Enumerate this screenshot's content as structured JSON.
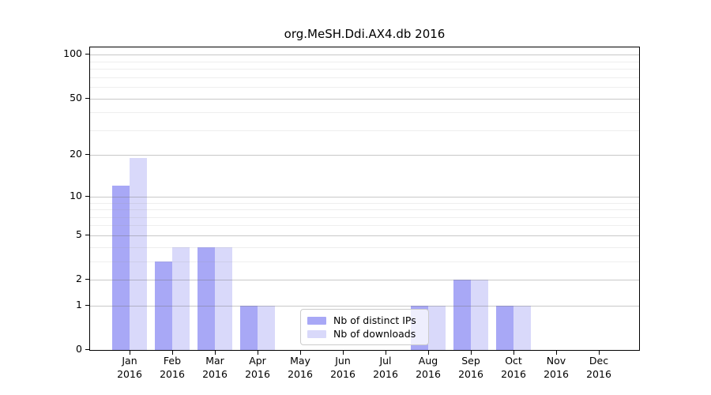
{
  "title": "org.MeSH.Ddi.AX4.db 2016",
  "chart_data": {
    "type": "bar",
    "title": "org.MeSH.Ddi.AX4.db 2016",
    "categories": [
      "Jan 2016",
      "Feb 2016",
      "Mar 2016",
      "Apr 2016",
      "May 2016",
      "Jun 2016",
      "Jul 2016",
      "Aug 2016",
      "Sep 2016",
      "Oct 2016",
      "Nov 2016",
      "Dec 2016"
    ],
    "series": [
      {
        "name": "Nb of distinct IPs",
        "color": "#a8a8f6",
        "values": [
          12,
          3,
          4,
          1,
          0,
          0,
          0,
          1,
          2,
          1,
          0,
          0
        ]
      },
      {
        "name": "Nb of downloads",
        "color": "#d9d9fa",
        "values": [
          19,
          4,
          4,
          1,
          0,
          0,
          0,
          1,
          2,
          1,
          0,
          0
        ]
      }
    ],
    "xlabel": "",
    "ylabel": "",
    "y_scale": "log1p",
    "y_major_ticks": [
      100,
      50,
      20,
      10,
      5,
      2,
      1,
      0
    ],
    "y_minor_ticks": [
      3,
      4,
      6,
      7,
      8,
      9,
      30,
      40,
      60,
      70,
      80,
      90
    ],
    "ylim": [
      0,
      112
    ],
    "grid": "on",
    "legend_position": "lower center",
    "axis_color": "#000000",
    "grid_major_color": "#c3c3c3",
    "grid_minor_color": "#ebebeb",
    "background_color": "#ffffff"
  }
}
